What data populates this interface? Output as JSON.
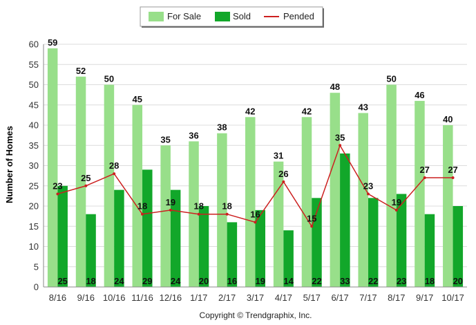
{
  "chart_data": {
    "type": "bar",
    "categories": [
      "8/16",
      "9/16",
      "10/16",
      "11/16",
      "12/16",
      "1/17",
      "2/17",
      "3/17",
      "4/17",
      "5/17",
      "6/17",
      "7/17",
      "8/17",
      "9/17",
      "10/17"
    ],
    "series": [
      {
        "name": "For Sale",
        "type": "bar",
        "color": "#98df8a",
        "values": [
          59,
          52,
          50,
          45,
          35,
          36,
          38,
          42,
          31,
          42,
          48,
          43,
          50,
          46,
          40
        ]
      },
      {
        "name": "Sold",
        "type": "bar",
        "color": "#12a72a",
        "values": [
          25,
          18,
          24,
          29,
          24,
          20,
          16,
          19,
          14,
          22,
          33,
          22,
          23,
          18,
          20
        ]
      },
      {
        "name": "Pended",
        "type": "line",
        "color": "#cc1f1f",
        "values": [
          23,
          25,
          28,
          18,
          19,
          18,
          18,
          16,
          26,
          15,
          35,
          23,
          19,
          27,
          27
        ]
      }
    ],
    "ylabel": "Number of Homes",
    "xlabel": "",
    "ylim": [
      0,
      60
    ],
    "yticks": [
      0,
      5,
      10,
      15,
      20,
      25,
      30,
      35,
      40,
      45,
      50,
      55,
      60
    ],
    "grid": true,
    "legend_position": "top-center"
  },
  "legend": {
    "items": [
      {
        "label": "For Sale",
        "color": "#98df8a",
        "kind": "bar"
      },
      {
        "label": "Sold",
        "color": "#12a72a",
        "kind": "bar"
      },
      {
        "label": "Pended",
        "color": "#cc1f1f",
        "kind": "line"
      }
    ]
  },
  "footer": {
    "copyright": "Copyright © Trendgraphix, Inc."
  }
}
